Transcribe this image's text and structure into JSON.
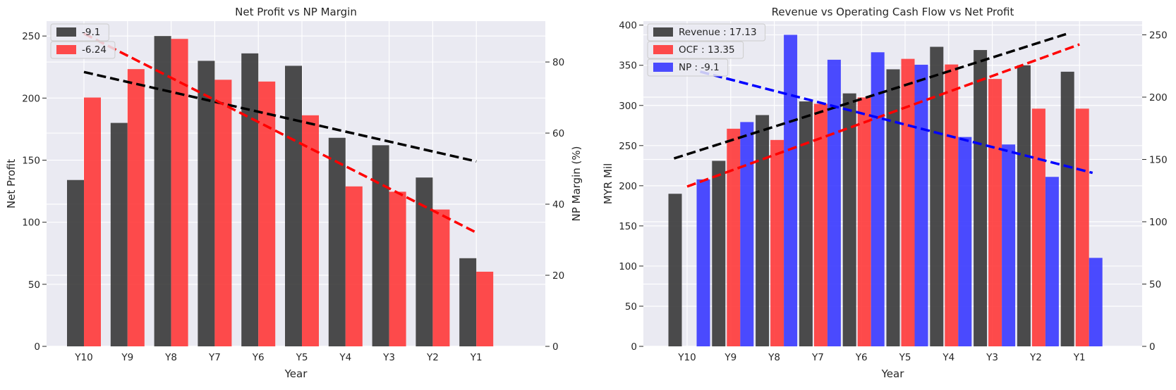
{
  "chart_data": [
    {
      "type": "bar",
      "title": "Net Profit vs NP Margin",
      "xlabel": "Year",
      "ylabel": "Net Profit",
      "y2label": "NP Margin (%)",
      "categories": [
        "Y10",
        "Y9",
        "Y8",
        "Y7",
        "Y6",
        "Y5",
        "Y4",
        "Y3",
        "Y2",
        "Y1"
      ],
      "ylim": [
        0,
        262
      ],
      "y2lim": [
        0,
        91.5
      ],
      "yticks": [
        0,
        50,
        100,
        150,
        200,
        250
      ],
      "y2ticks": [
        0,
        20,
        40,
        60,
        80
      ],
      "grid": true,
      "legend_placement": "top-left",
      "series": [
        {
          "name": "-9.1",
          "axis": "left",
          "color": "#333333",
          "values": [
            134,
            180,
            250,
            230,
            236,
            226,
            168,
            162,
            136,
            71
          ]
        },
        {
          "name": "-6.24",
          "axis": "right",
          "color": "#ff3333",
          "values": [
            70,
            78,
            86.5,
            75,
            74.5,
            65,
            45,
            43.5,
            38.5,
            21
          ]
        }
      ],
      "trendlines": [
        {
          "axis": "left",
          "color": "#000000",
          "from": [
            0,
            221
          ],
          "to": [
            9,
            149
          ]
        },
        {
          "axis": "right",
          "color": "#ff0000",
          "from": [
            0,
            88
          ],
          "to": [
            9,
            32
          ]
        }
      ]
    },
    {
      "type": "bar",
      "title": "Revenue vs Operating Cash Flow vs Net Profit",
      "xlabel": "Year",
      "ylabel": "MYR Mil",
      "categories": [
        "Y10",
        "Y9",
        "Y8",
        "Y7",
        "Y6",
        "Y5",
        "Y4",
        "Y3",
        "Y2",
        "Y1"
      ],
      "ylim": [
        0,
        405
      ],
      "y2lim": [
        0,
        261
      ],
      "yticks": [
        0,
        50,
        100,
        150,
        200,
        250,
        300,
        350,
        400
      ],
      "y2ticks": [
        0,
        50,
        100,
        150,
        200,
        250
      ],
      "grid": true,
      "legend_placement": "top-left",
      "series": [
        {
          "name": "Revenue : 17.13",
          "axis": "left",
          "color": "#333333",
          "values": [
            190,
            231,
            288,
            305,
            315,
            345,
            373,
            369,
            350,
            342
          ]
        },
        {
          "name": "OCF : 13.35",
          "axis": "left",
          "color": "#ff3333",
          "values": [
            0,
            271,
            257,
            302,
            310,
            358,
            351,
            333,
            296,
            296
          ]
        },
        {
          "name": "NP : -9.1",
          "axis": "right",
          "color": "#3333ff",
          "values": [
            134,
            180,
            250,
            230,
            236,
            226,
            168,
            162,
            136,
            71
          ]
        }
      ],
      "trendlines": [
        {
          "axis": "left",
          "color": "#000000",
          "from": [
            -0.3,
            234
          ],
          "to": [
            8.7,
            389
          ]
        },
        {
          "axis": "left",
          "color": "#ff0000",
          "from": [
            0,
            199
          ],
          "to": [
            9,
            376
          ]
        },
        {
          "axis": "left",
          "color": "#0000ff",
          "from": [
            0.3,
            342
          ],
          "to": [
            9.3,
            216
          ]
        }
      ]
    }
  ]
}
